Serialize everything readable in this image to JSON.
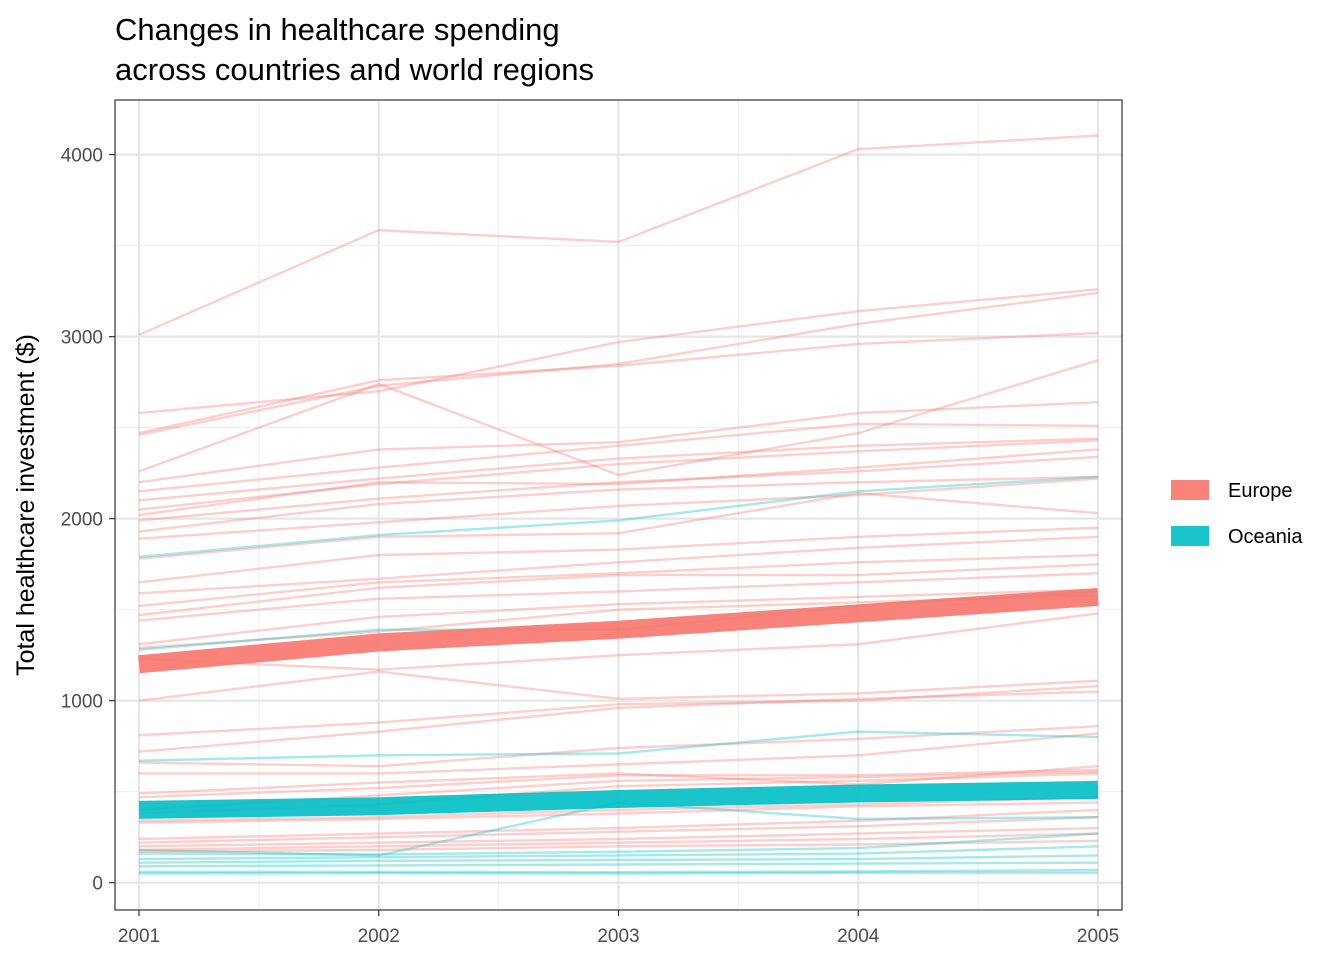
{
  "chart_data": {
    "type": "line",
    "title_lines": [
      "Changes in healthcare spending",
      "across countries and world regions"
    ],
    "xlabel": "",
    "ylabel": "Total healthcare investment ($)",
    "x": [
      2001,
      2002,
      2003,
      2004,
      2005
    ],
    "xlim": [
      2000.9,
      2005.1
    ],
    "ylim": [
      -150,
      4300
    ],
    "y_ticks": [
      0,
      1000,
      2000,
      3000,
      4000
    ],
    "grid": true,
    "legend_position": "right",
    "legend": [
      {
        "name": "Europe",
        "color": "#F8766D"
      },
      {
        "name": "Oceania",
        "color": "#00BFC4"
      }
    ],
    "regions": [
      {
        "name": "Europe",
        "color": "#F8766D",
        "mean": [
          1200,
          1320,
          1390,
          1480,
          1570
        ],
        "countries": [
          [
            3010,
            3585,
            3520,
            4030,
            4105
          ],
          [
            2580,
            2700,
            2970,
            3140,
            3260
          ],
          [
            2460,
            2730,
            2850,
            3070,
            3240
          ],
          [
            2470,
            2760,
            2840,
            2960,
            3020
          ],
          [
            2260,
            2740,
            2240,
            2470,
            2870
          ],
          [
            2200,
            2380,
            2420,
            2580,
            2640
          ],
          [
            2150,
            2280,
            2400,
            2520,
            2510
          ],
          [
            2100,
            2220,
            2330,
            2400,
            2440
          ],
          [
            2050,
            2190,
            2300,
            2370,
            2430
          ],
          [
            2020,
            2200,
            2190,
            2280,
            2380
          ],
          [
            1990,
            2110,
            2200,
            2260,
            2340
          ],
          [
            1930,
            2080,
            2160,
            2200,
            2230
          ],
          [
            1890,
            1980,
            2070,
            2130,
            2220
          ],
          [
            1780,
            1900,
            1920,
            2140,
            2030
          ],
          [
            1650,
            1800,
            1830,
            1900,
            1950
          ],
          [
            1590,
            1670,
            1760,
            1840,
            1900
          ],
          [
            1520,
            1650,
            1700,
            1760,
            1800
          ],
          [
            1470,
            1620,
            1690,
            1690,
            1750
          ],
          [
            1440,
            1560,
            1600,
            1650,
            1700
          ],
          [
            1310,
            1460,
            1530,
            1570,
            1610
          ],
          [
            1290,
            1380,
            1500,
            1540,
            1580
          ],
          [
            1230,
            1170,
            1250,
            1310,
            1480
          ],
          [
            1000,
            1160,
            1010,
            1040,
            1110
          ],
          [
            810,
            880,
            980,
            1000,
            1080
          ],
          [
            720,
            830,
            960,
            1010,
            1050
          ],
          [
            660,
            640,
            740,
            790,
            860
          ],
          [
            600,
            600,
            650,
            700,
            820
          ],
          [
            490,
            550,
            600,
            540,
            640
          ],
          [
            470,
            520,
            590,
            590,
            620
          ],
          [
            400,
            480,
            560,
            580,
            610
          ],
          [
            380,
            430,
            530,
            560,
            600
          ],
          [
            340,
            360,
            400,
            430,
            470
          ],
          [
            330,
            350,
            380,
            420,
            440
          ],
          [
            240,
            270,
            300,
            340,
            400
          ],
          [
            220,
            250,
            280,
            310,
            360
          ],
          [
            200,
            220,
            240,
            270,
            300
          ],
          [
            180,
            200,
            220,
            240,
            270
          ],
          [
            170,
            180,
            200,
            210,
            230
          ]
        ]
      },
      {
        "name": "Oceania",
        "color": "#00BFC4",
        "mean": [
          400,
          420,
          460,
          490,
          510
        ],
        "countries": [
          [
            1790,
            1910,
            1990,
            2150,
            2230
          ],
          [
            1280,
            1390,
            1390,
            1520,
            1600
          ],
          [
            670,
            700,
            710,
            830,
            800
          ],
          [
            180,
            150,
            440,
            350,
            360
          ],
          [
            160,
            155,
            170,
            190,
            270
          ],
          [
            130,
            140,
            150,
            160,
            200
          ],
          [
            110,
            120,
            125,
            130,
            150
          ],
          [
            90,
            95,
            100,
            105,
            110
          ],
          [
            60,
            60,
            58,
            62,
            70
          ],
          [
            50,
            52,
            50,
            55,
            55
          ]
        ]
      }
    ]
  }
}
